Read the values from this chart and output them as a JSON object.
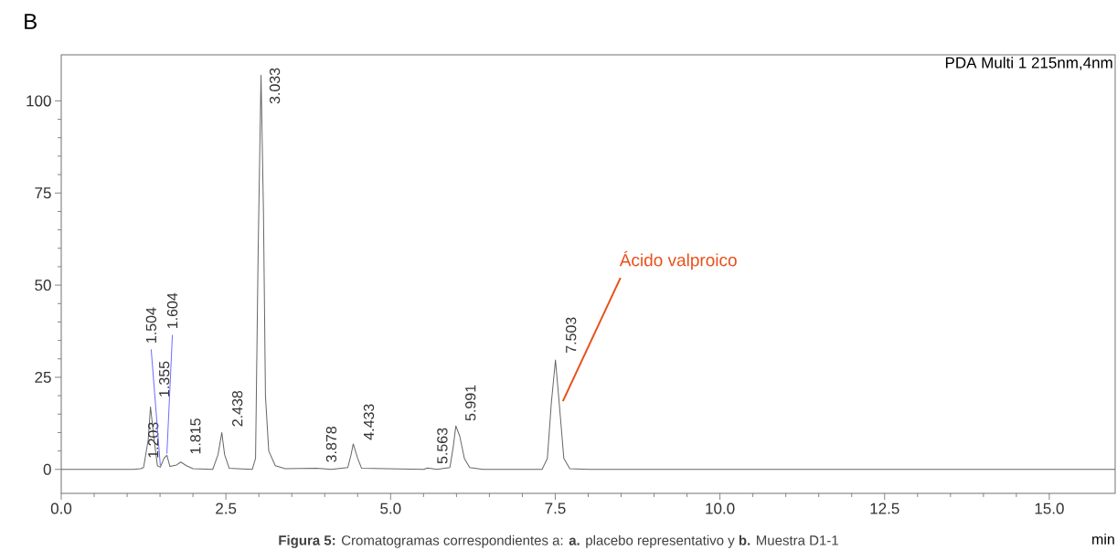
{
  "chart_data": {
    "type": "line",
    "title": "B",
    "xlabel": "min",
    "xlim": [
      0,
      16
    ],
    "ylim": [
      -6.5,
      112.5
    ],
    "xticks": [
      {
        "value": 0,
        "label": "0.0"
      },
      2.5,
      {
        "value": 5,
        "label": "5.0"
      },
      7.5,
      {
        "value": 10,
        "label": "10.0"
      },
      12.5,
      {
        "value": 15,
        "label": "15.0"
      }
    ],
    "yticks": [
      0,
      25,
      50,
      75,
      100
    ],
    "series": [
      {
        "color": "#666666",
        "x": [
          0,
          1.1,
          1.203,
          1.25,
          1.32,
          1.355,
          1.41,
          1.46,
          1.504,
          1.56,
          1.604,
          1.65,
          1.75,
          1.815,
          1.9,
          2.0,
          2.3,
          2.38,
          2.438,
          2.48,
          2.55,
          2.9,
          2.95,
          2.99,
          3.033,
          3.07,
          3.1,
          3.15,
          3.25,
          3.4,
          3.878,
          4.1,
          4.35,
          4.4,
          4.433,
          4.5,
          4.56,
          5.5,
          5.563,
          5.7,
          5.9,
          5.95,
          5.991,
          6.05,
          6.12,
          6.2,
          6.4,
          7.3,
          7.38,
          7.44,
          7.503,
          7.56,
          7.63,
          7.72,
          8,
          16
        ],
        "values": [
          0,
          0,
          0.2,
          0.5,
          8,
          17,
          8,
          1,
          0.6,
          3,
          3.8,
          0.8,
          1.2,
          2,
          1,
          0.2,
          0,
          4,
          10,
          4,
          0.3,
          0,
          3,
          60,
          107,
          70,
          20,
          5,
          1,
          0.2,
          0.3,
          0,
          0.5,
          4,
          6.9,
          3,
          0.3,
          0,
          0.4,
          0,
          0.5,
          6,
          11.8,
          9,
          3,
          0.5,
          0,
          0,
          3,
          18,
          29.7,
          18,
          3,
          0.2,
          0,
          0
        ]
      }
    ],
    "annotations": [
      {
        "text": "1.203",
        "x": 1.203,
        "y": 0.2
      },
      {
        "text": "1.355",
        "x": 1.355,
        "y": 17
      },
      {
        "text": "1.504",
        "x": 1.504,
        "y": 0.6
      },
      {
        "text": "1.604",
        "x": 1.604,
        "y": 3.8
      },
      {
        "text": "1.815",
        "x": 1.815,
        "y": 2
      },
      {
        "text": "2.438",
        "x": 2.438,
        "y": 10
      },
      {
        "text": "3.033",
        "x": 3.033,
        "y": 107
      },
      {
        "text": "3.878",
        "x": 3.878,
        "y": 0.3
      },
      {
        "text": "4.433",
        "x": 4.433,
        "y": 6.9
      },
      {
        "text": "5.563",
        "x": 5.563,
        "y": 0.4
      },
      {
        "text": "5.991",
        "x": 5.991,
        "y": 11.8
      },
      {
        "text": "7.503",
        "x": 7.503,
        "y": 29.7
      },
      {
        "text": "Ácido valproico",
        "x": 7.56,
        "y": 18
      },
      "PDA Multi 1 215nm,4nm",
      "**Figura 5:** Cromatogramas correspondientes a: **a.** placebo representativo y **b.** Muestra D1-1"
    ]
  }
}
